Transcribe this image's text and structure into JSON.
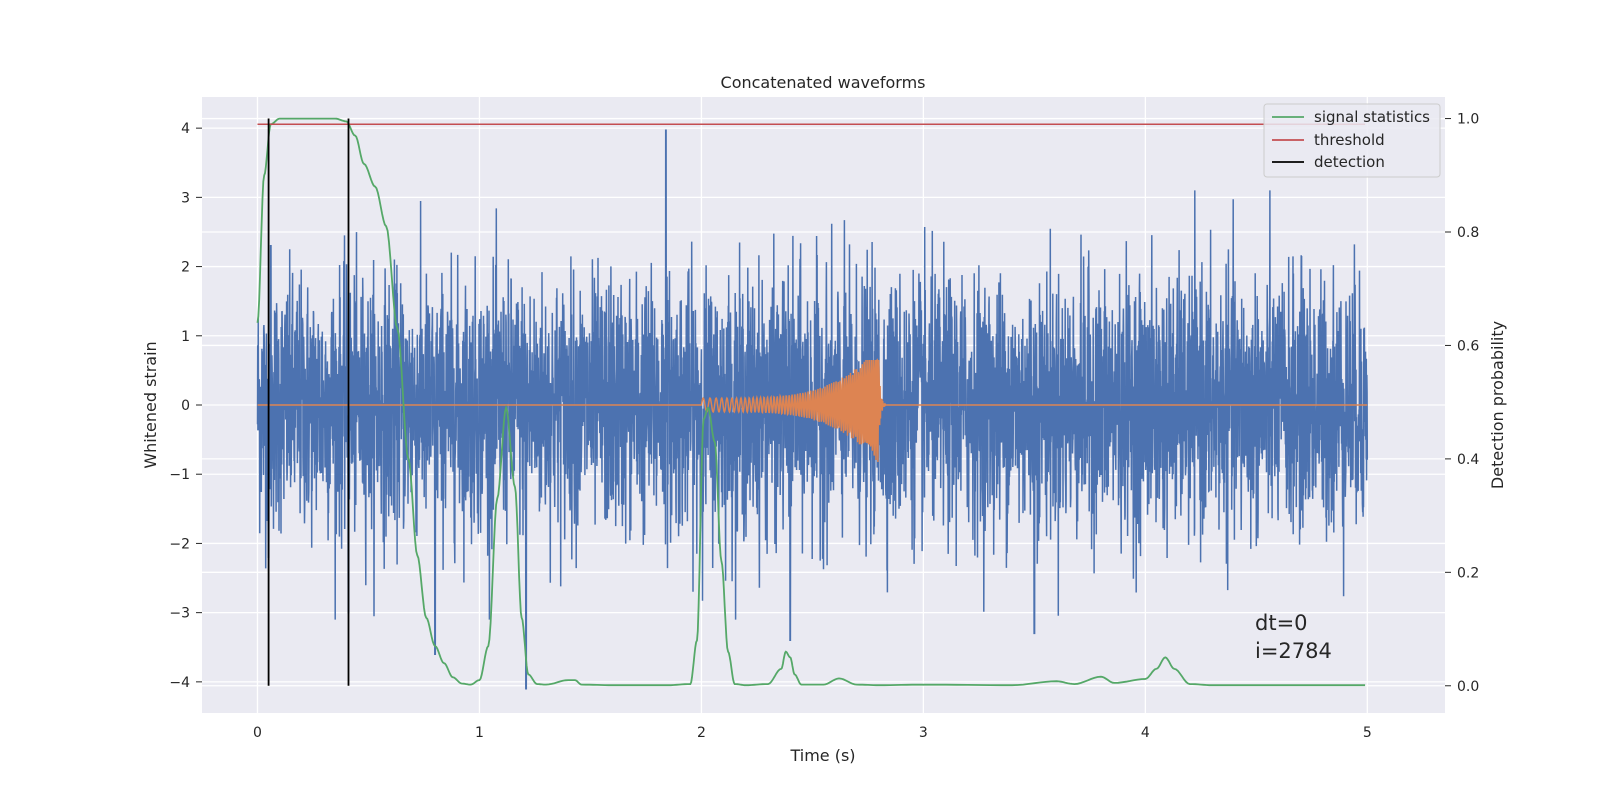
{
  "chart_data": {
    "type": "line",
    "title": "Concatenated waveforms",
    "xlabel": "Time (s)",
    "ylabel": "Whitened strain",
    "y2label": "Detection probability",
    "xlim": [
      -0.25,
      5.35
    ],
    "ylim": [
      -4.45,
      4.45
    ],
    "y2lim": [
      -0.048,
      1.038
    ],
    "xticks": [
      "0",
      "1",
      "2",
      "3",
      "4",
      "5"
    ],
    "yticks": [
      "4",
      "3",
      "2",
      "1",
      "0",
      "−1",
      "−2",
      "−3",
      "−4"
    ],
    "y2ticks": [
      "1.0",
      "0.8",
      "0.6",
      "0.4",
      "0.2",
      "0.0"
    ],
    "grid": true,
    "background": "#eaeaf2",
    "legend_position": "top-right",
    "colors": {
      "strain": "#4c72b0",
      "template": "#dd8452",
      "signal_statistics": "#55a868",
      "threshold": "#c44e52",
      "detection": "#000000"
    },
    "series": [
      {
        "role": "strain",
        "axis": "left",
        "description": "noisy whitened strain, amplitude mostly within about ±3, peak near 4 at t≈1.84",
        "x_range": [
          0,
          5
        ],
        "spikes": [
          [
            1.84,
            3.97
          ],
          [
            0.05,
            -2.2
          ],
          [
            0.41,
            2.55
          ],
          [
            0.41,
            -3.0
          ],
          [
            0.8,
            -3.6
          ],
          [
            1.21,
            -4.1
          ],
          [
            2.4,
            -3.4
          ],
          [
            3.5,
            -3.3
          ],
          [
            0.06,
            2.3
          ],
          [
            3.8,
            -1.0
          ]
        ]
      },
      {
        "role": "template",
        "axis": "left",
        "description": "chirp waveform from t=2.0 to t≈2.8, amplitude growing to about 0.65 (up) and -0.95 (down) at merger",
        "chirp_start": 2.0,
        "chirp_end": 2.8,
        "amp_start": 0.1,
        "amp_end_pos": 0.65,
        "amp_end_neg": -0.95
      },
      {
        "name": "signal statistics",
        "axis": "right",
        "x": [
          0.0,
          0.03,
          0.06,
          0.1,
          0.15,
          0.25,
          0.35,
          0.4,
          0.44,
          0.48,
          0.53,
          0.58,
          0.63,
          0.68,
          0.72,
          0.76,
          0.8,
          0.84,
          0.88,
          0.92,
          0.96,
          1.0,
          1.04,
          1.08,
          1.12,
          1.16,
          1.19,
          1.22,
          1.26,
          1.3,
          1.4,
          1.43,
          1.46,
          1.6,
          1.85,
          1.95,
          1.98,
          2.01,
          2.03,
          2.06,
          2.09,
          2.12,
          2.15,
          2.2,
          2.3,
          2.36,
          2.38,
          2.4,
          2.42,
          2.45,
          2.55,
          2.62,
          2.7,
          2.8,
          3.0,
          3.4,
          3.6,
          3.68,
          3.8,
          3.86,
          4.0,
          4.05,
          4.09,
          4.13,
          4.2,
          4.3,
          4.99
        ],
        "values": [
          0.64,
          0.9,
          0.99,
          1.0,
          1.0,
          1.0,
          1.0,
          0.995,
          0.97,
          0.92,
          0.88,
          0.81,
          0.63,
          0.4,
          0.23,
          0.12,
          0.07,
          0.04,
          0.015,
          0.004,
          0.002,
          0.01,
          0.07,
          0.33,
          0.49,
          0.35,
          0.12,
          0.02,
          0.003,
          0.002,
          0.01,
          0.01,
          0.002,
          0.001,
          0.001,
          0.003,
          0.08,
          0.47,
          0.49,
          0.43,
          0.22,
          0.06,
          0.003,
          0.001,
          0.003,
          0.03,
          0.06,
          0.05,
          0.02,
          0.002,
          0.002,
          0.013,
          0.002,
          0.001,
          0.002,
          0.001,
          0.008,
          0.003,
          0.016,
          0.005,
          0.012,
          0.03,
          0.05,
          0.03,
          0.003,
          0.001,
          0.001
        ]
      },
      {
        "name": "threshold",
        "axis": "right",
        "x": [
          0.0,
          4.99
        ],
        "values": [
          0.99,
          0.99
        ]
      },
      {
        "name": "detection",
        "axis": "right",
        "type": "vlines",
        "x": [
          0.05,
          0.41
        ],
        "range": [
          0.0,
          1.0
        ]
      }
    ],
    "annotations": [
      "dt=0",
      "i=2784"
    ]
  }
}
